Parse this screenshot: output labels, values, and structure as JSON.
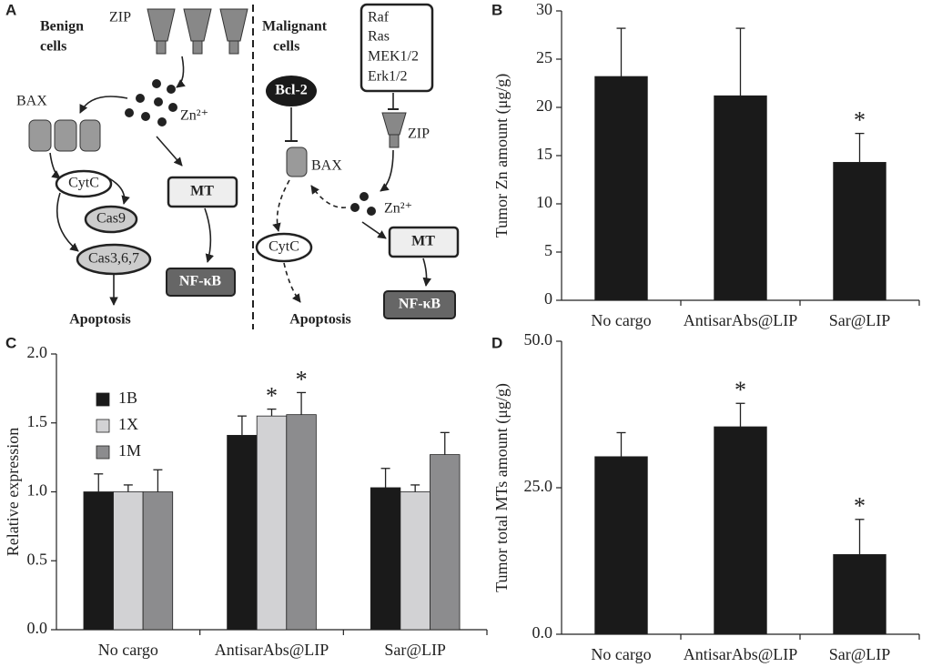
{
  "diagram": {
    "panel": "A",
    "benign": {
      "title_lines": [
        "Benign",
        "cells"
      ],
      "zip": "ZIP",
      "bax": "BAX",
      "zinc": "Zn²⁺",
      "cytc": "CytC",
      "cas9": "Cas9",
      "cas367": "Cas3,6,7",
      "mt": "MT",
      "nfkb": "NF-κB",
      "apoptosis": "Apoptosis"
    },
    "malignant": {
      "title_lines": [
        "Malignant",
        "cells"
      ],
      "kinases": [
        "Raf",
        "Ras",
        "MEK1/2",
        "Erk1/2"
      ],
      "bcl2": "Bcl-2",
      "zip": "ZIP",
      "bax": "BAX",
      "zinc": "Zn²⁺",
      "cytc": "CytC",
      "mt": "MT",
      "nfkb": "NF-κB",
      "apoptosis": "Apoptosis"
    }
  },
  "chart_data": [
    {
      "type": "bar",
      "panel": "B",
      "y_label": "Tumor Zn amount (μg/g)",
      "categories": [
        "No cargo",
        "AntisarAbs@LIP",
        "Sar@LIP"
      ],
      "values": [
        23.2,
        21.2,
        14.3
      ],
      "errors": [
        5.0,
        7.0,
        3.0
      ],
      "markers": [
        null,
        null,
        "*"
      ],
      "color": "#1a1a1a",
      "ylim": [
        0,
        30
      ],
      "yticks": [
        0,
        5,
        10,
        15,
        20,
        25,
        30
      ]
    },
    {
      "type": "bar",
      "panel": "C",
      "y_label": "Relative expression",
      "categories": [
        "No cargo",
        "AntisarAbs@LIP",
        "Sar@LIP"
      ],
      "series": [
        {
          "name": "1B",
          "color": "#1a1a1a",
          "values": [
            1.0,
            1.41,
            1.03
          ],
          "errors": [
            0.13,
            0.14,
            0.14
          ],
          "markers": [
            null,
            null,
            null
          ]
        },
        {
          "name": "1X",
          "color": "#d2d2d4",
          "values": [
            1.0,
            1.55,
            1.0
          ],
          "errors": [
            0.05,
            0.05,
            0.05
          ],
          "markers": [
            null,
            "*",
            null
          ]
        },
        {
          "name": "1M",
          "color": "#8c8c8e",
          "values": [
            1.0,
            1.56,
            1.27
          ],
          "errors": [
            0.16,
            0.16,
            0.16
          ],
          "markers": [
            null,
            "*",
            null
          ]
        }
      ],
      "legend": "upper left",
      "ylim": [
        0,
        2
      ],
      "yticks": [
        {
          "value": 0,
          "label": "0.0"
        },
        {
          "value": 0.5,
          "label": "0.5"
        },
        {
          "value": 1,
          "label": "1.0"
        },
        {
          "value": 1.5,
          "label": "1.5"
        },
        {
          "value": 2,
          "label": "2.0"
        }
      ]
    },
    {
      "type": "bar",
      "panel": "D",
      "y_label": "Tumor total MTs amount (μg/g)",
      "categories": [
        "No cargo",
        "AntisarAbs@LIP",
        "Sar@LIP"
      ],
      "values": [
        30.3,
        35.4,
        13.6
      ],
      "errors": [
        4.1,
        4.0,
        6.0
      ],
      "markers": [
        null,
        "*",
        "*"
      ],
      "color": "#1a1a1a",
      "ylim": [
        0,
        50
      ],
      "yticks": [
        {
          "value": 0,
          "label": "0.0"
        },
        {
          "value": 25,
          "label": "25.0"
        },
        {
          "value": 50,
          "label": "50.0"
        }
      ]
    }
  ]
}
